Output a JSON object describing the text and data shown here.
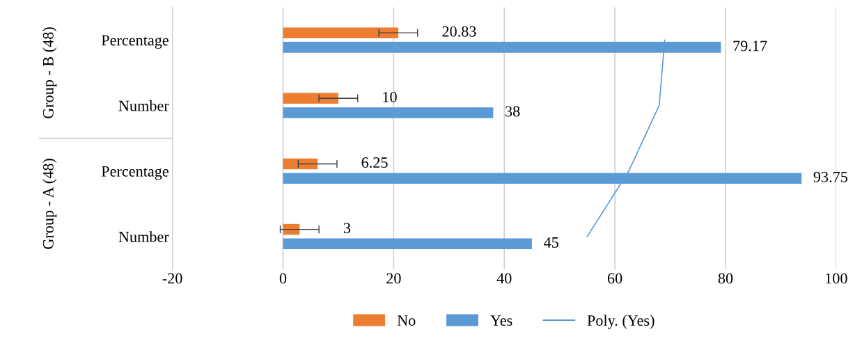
{
  "chart_data": {
    "type": "bar",
    "orientation": "horizontal",
    "categories": [
      "Percentage",
      "Number",
      "Percentage",
      "Number"
    ],
    "series": [
      {
        "name": "No",
        "color": "#ed7d31",
        "values": [
          20.83,
          10,
          6.25,
          3
        ],
        "errors": [
          3.5,
          3.5,
          3.5,
          3.5
        ],
        "value_labels": [
          "20.83",
          "10",
          "6.25",
          "3"
        ]
      },
      {
        "name": "Yes",
        "color": "#5b9bd5",
        "values": [
          79.17,
          38,
          93.75,
          45
        ],
        "value_labels": [
          "79.17",
          "38",
          "93.75",
          "45"
        ]
      },
      {
        "name": "Poly. (Yes)",
        "type": "line",
        "color": "#5b9bd5",
        "values": [
          69,
          68,
          62.5,
          55
        ]
      }
    ],
    "xlim": [
      -20,
      100
    ],
    "xticks": [
      -20,
      0,
      20,
      40,
      60,
      80,
      100
    ],
    "grid": "x",
    "legend": "bottom",
    "annotations": [
      "Group - B (48)",
      "Group - A (48)"
    ]
  }
}
